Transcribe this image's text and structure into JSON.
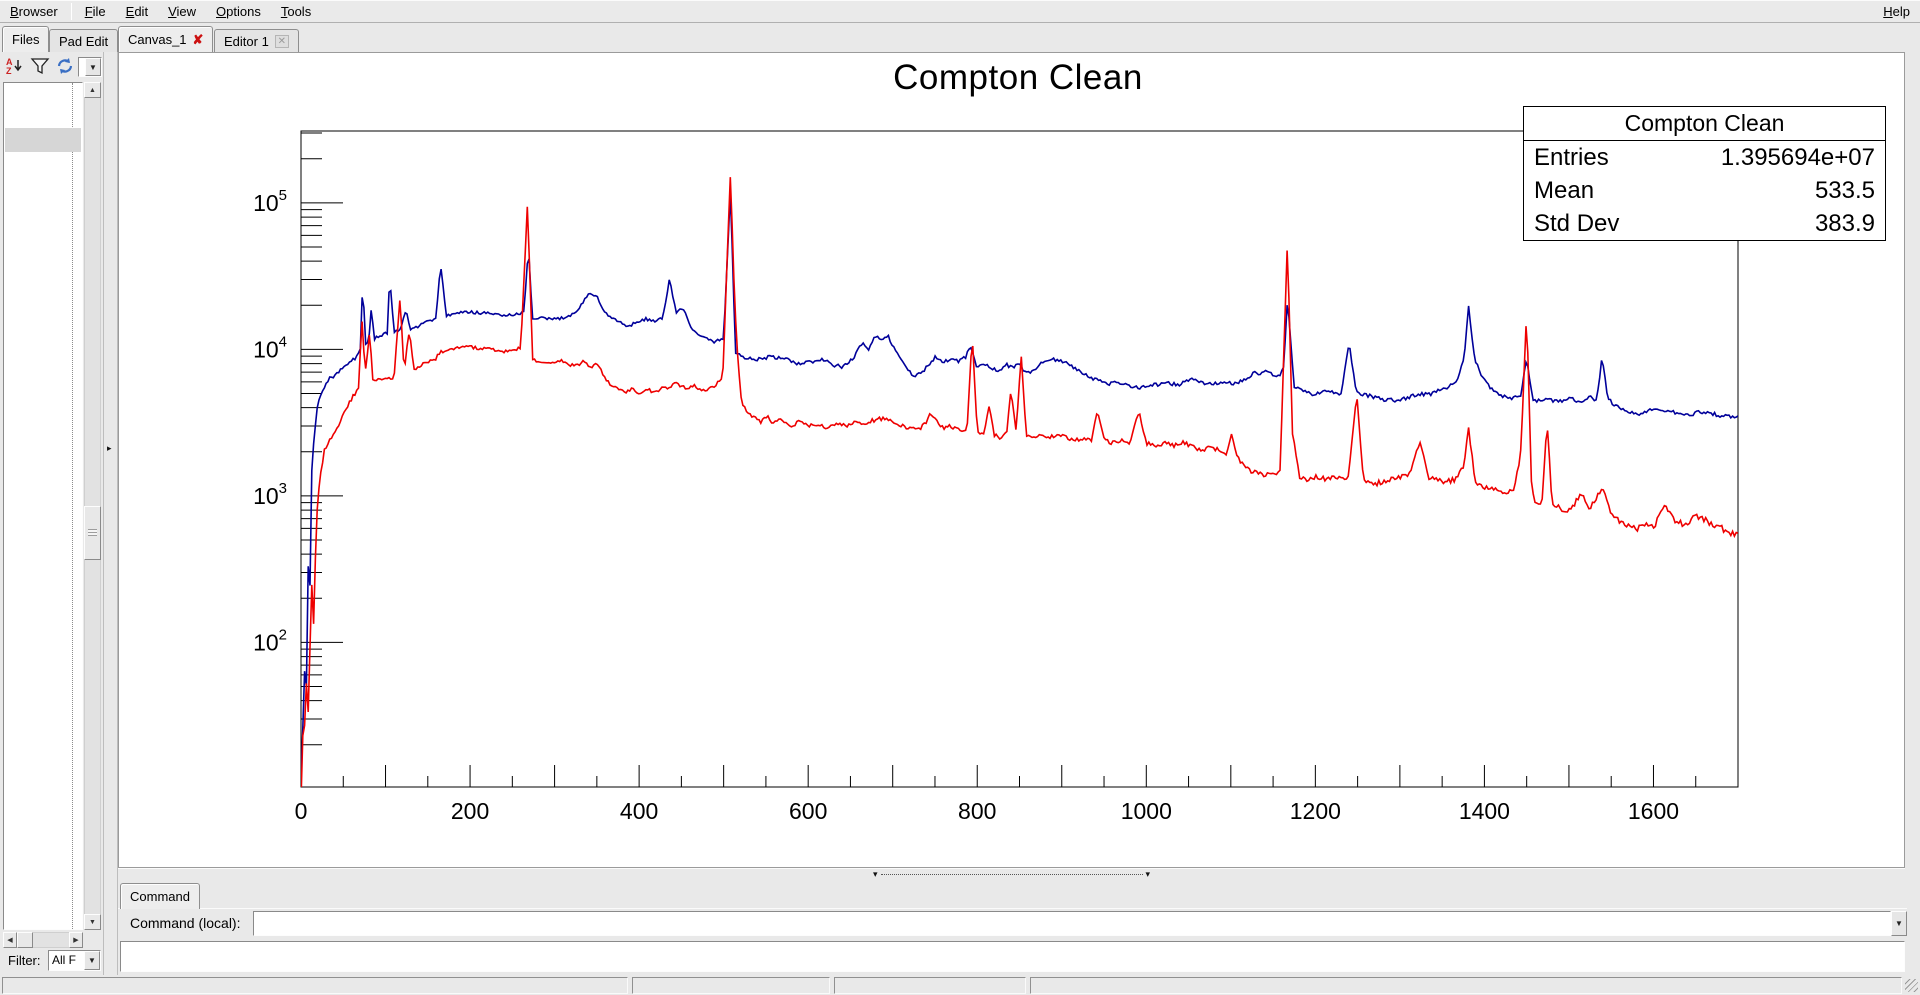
{
  "menu_bar": {
    "left_items": [
      "Browser",
      "File",
      "Edit",
      "View",
      "Options",
      "Tools"
    ],
    "right_items": [
      "Help"
    ]
  },
  "left_panel": {
    "tabs": [
      {
        "label": "Files"
      },
      {
        "label": "Pad Edit"
      }
    ],
    "toolbar_icons": [
      "sort-az-icon",
      "filter-icon",
      "refresh-icon"
    ],
    "toolbar_combo_value": "",
    "filter": {
      "label": "Filter:",
      "value": "All F"
    }
  },
  "main_area": {
    "tabs": [
      {
        "label": "Canvas_1"
      },
      {
        "label": "Editor 1"
      }
    ]
  },
  "command_panel": {
    "tab_label": "Command",
    "prompt_label": "Command (local):",
    "input_value": ""
  },
  "status_bar": {
    "cells": [
      "",
      "",
      "",
      ""
    ]
  },
  "chart_data": {
    "type": "line",
    "title": "Compton Clean",
    "xlabel": "",
    "ylabel": "",
    "xlim": [
      0,
      1700
    ],
    "ylim": [
      10,
      310000
    ],
    "yscale": "log",
    "grid": false,
    "x_tick_major_step": 100,
    "x_tick_minor_step": 50,
    "x_tick_labels": [
      0,
      200,
      400,
      600,
      800,
      1000,
      1200,
      1400,
      1600
    ],
    "y_tick_exponents": [
      2,
      3,
      4,
      5
    ],
    "stats_box": {
      "title": "Compton Clean",
      "rows": [
        {
          "label": "Entries",
          "value": "1.395694e+07"
        },
        {
          "label": "Mean",
          "value": "533.5"
        },
        {
          "label": "Std Dev",
          "value": "383.9"
        }
      ]
    },
    "series": [
      {
        "name": "spectrum-blue",
        "color": "#00009a",
        "points_xy": [
          1,
          12,
          4,
          80,
          6,
          30,
          8,
          400,
          10,
          150,
          13,
          1800,
          16,
          2600,
          20,
          4500,
          27,
          5500,
          34,
          6300,
          42,
          6800,
          52,
          7600,
          62,
          8500,
          70,
          9500,
          73,
          30000,
          76,
          11000,
          80,
          11500,
          83,
          19000,
          87,
          11800,
          95,
          12500,
          102,
          13000,
          105,
          31000,
          110,
          13000,
          118,
          13800,
          124,
          18500,
          130,
          13500,
          140,
          14500,
          150,
          15500,
          160,
          16500,
          165,
          39000,
          172,
          16800,
          183,
          17500,
          196,
          18000,
          210,
          17800,
          224,
          17500,
          238,
          17200,
          250,
          17000,
          258,
          17400,
          264,
          18000,
          269,
          50000,
          274,
          16000,
          283,
          16300,
          297,
          16000,
          312,
          16500,
          326,
          18000,
          340,
          24000,
          350,
          23000,
          360,
          17500,
          372,
          16000,
          384,
          14500,
          396,
          15000,
          408,
          16200,
          420,
          15500,
          428,
          16300,
          436,
          30000,
          444,
          17500,
          452,
          19500,
          460,
          14500,
          469,
          12500,
          480,
          11800,
          490,
          11300,
          500,
          11800,
          508,
          120000,
          514,
          9500,
          524,
          8800,
          538,
          8500,
          556,
          8900,
          572,
          8600,
          588,
          8000,
          603,
          8200,
          617,
          8500,
          630,
          7800,
          641,
          7600,
          652,
          8500,
          664,
          11000,
          671,
          10000,
          679,
          12200,
          687,
          11800,
          694,
          12500,
          703,
          9800,
          714,
          7700,
          725,
          6500,
          738,
          7300,
          750,
          8800,
          759,
          8200,
          768,
          8600,
          777,
          8300,
          786,
          8800,
          792,
          10800,
          799,
          7700,
          808,
          7900,
          817,
          7400,
          826,
          7100,
          834,
          7900,
          842,
          7500,
          848,
          8000,
          855,
          7200,
          863,
          7000,
          876,
          8000,
          888,
          8600,
          899,
          8400,
          911,
          7700,
          924,
          7000,
          938,
          6300,
          952,
          5800,
          966,
          5900,
          979,
          5700,
          993,
          5500,
          1008,
          5700,
          1023,
          5900,
          1038,
          5700,
          1052,
          6300,
          1066,
          5900,
          1080,
          5800,
          1093,
          6000,
          1105,
          5800,
          1118,
          6200,
          1128,
          7000,
          1136,
          6800,
          1145,
          7200,
          1152,
          6600,
          1159,
          6600,
          1163,
          8000,
          1167,
          22000,
          1175,
          5600,
          1186,
          5200,
          1198,
          4900,
          1210,
          5100,
          1221,
          5100,
          1231,
          5000,
          1240,
          11300,
          1248,
          5100,
          1259,
          4900,
          1271,
          4700,
          1284,
          4500,
          1297,
          4500,
          1311,
          4700,
          1323,
          5000,
          1335,
          4900,
          1347,
          5300,
          1358,
          5600,
          1368,
          6300,
          1376,
          8500,
          1381,
          20000,
          1388,
          8800,
          1398,
          6300,
          1409,
          5300,
          1421,
          4800,
          1433,
          4600,
          1443,
          4800,
          1450,
          8700,
          1457,
          4600,
          1466,
          4400,
          1473,
          4700,
          1481,
          4500,
          1491,
          4400,
          1502,
          4600,
          1513,
          4400,
          1526,
          4700,
          1533,
          4500,
          1539,
          8800,
          1546,
          4700,
          1553,
          4200,
          1563,
          3900,
          1574,
          3700,
          1583,
          3600,
          1594,
          3800,
          1606,
          3900,
          1614,
          3850,
          1624,
          3700,
          1635,
          3550,
          1647,
          3650,
          1658,
          3750,
          1670,
          3650,
          1682,
          3500,
          1695,
          3450
        ]
      },
      {
        "name": "spectrum-red",
        "color": "#ee0000",
        "points_xy": [
          1,
          10,
          3,
          50,
          5,
          15,
          7,
          90,
          9,
          25,
          12,
          300,
          15,
          120,
          18,
          700,
          22,
          1300,
          28,
          2100,
          35,
          2500,
          43,
          2900,
          52,
          3800,
          61,
          4700,
          68,
          5500,
          72,
          16000,
          76,
          6800,
          81,
          13000,
          85,
          6300,
          93,
          6200,
          101,
          6400,
          110,
          6300,
          117,
          22500,
          122,
          7200,
          128,
          13500,
          134,
          7200,
          142,
          7700,
          150,
          8300,
          158,
          8400,
          164,
          9500,
          171,
          9800,
          180,
          10000,
          190,
          10300,
          200,
          10400,
          212,
          10200,
          226,
          10000,
          240,
          9700,
          251,
          9900,
          260,
          10200,
          268,
          100000,
          274,
          8400,
          284,
          8300,
          296,
          8100,
          308,
          8300,
          318,
          7900,
          328,
          7700,
          334,
          8300,
          342,
          7500,
          351,
          7900,
          359,
          6400,
          367,
          5600,
          375,
          5400,
          384,
          5100,
          394,
          5400,
          402,
          4900,
          411,
          5300,
          419,
          5100,
          427,
          5500,
          435,
          5300,
          443,
          6100,
          450,
          5600,
          457,
          5300,
          465,
          5700,
          472,
          5400,
          480,
          5300,
          489,
          5600,
          499,
          6600,
          508,
          160000,
          513,
          21000,
          517,
          8200,
          521,
          4300,
          528,
          3700,
          536,
          3400,
          545,
          3200,
          552,
          3500,
          559,
          3100,
          566,
          3400,
          573,
          3100,
          581,
          3000,
          590,
          3200,
          600,
          3000,
          611,
          3100,
          622,
          2900,
          633,
          3100,
          644,
          3000,
          655,
          3200,
          667,
          3100,
          679,
          3300,
          690,
          3400,
          700,
          3200,
          710,
          3000,
          720,
          2900,
          730,
          2800,
          738,
          3100,
          745,
          3700,
          752,
          3200,
          761,
          2900,
          769,
          3000,
          778,
          2800,
          788,
          2900,
          794,
          12500,
          800,
          2800,
          808,
          2600,
          814,
          4100,
          820,
          2600,
          828,
          2500,
          835,
          2700,
          840,
          5300,
          846,
          2800,
          852,
          9200,
          858,
          2600,
          866,
          2500,
          876,
          2600,
          886,
          2500,
          896,
          2600,
          906,
          2500,
          916,
          2400,
          926,
          2500,
          935,
          2400,
          942,
          3900,
          950,
          2400,
          960,
          2300,
          970,
          2400,
          981,
          2300,
          991,
          3800,
          1000,
          2300,
          1011,
          2200,
          1021,
          2300,
          1033,
          2200,
          1044,
          2300,
          1055,
          2150,
          1066,
          2050,
          1077,
          2150,
          1088,
          2000,
          1095,
          1950,
          1101,
          2700,
          1108,
          1850,
          1118,
          1550,
          1128,
          1450,
          1139,
          1400,
          1149,
          1450,
          1158,
          1400,
          1167,
          54000,
          1173,
          2700,
          1181,
          1350,
          1191,
          1300,
          1201,
          1350,
          1211,
          1300,
          1221,
          1350,
          1229,
          1300,
          1239,
          1350,
          1249,
          4900,
          1257,
          1250,
          1268,
          1200,
          1280,
          1250,
          1291,
          1300,
          1302,
          1350,
          1312,
          1400,
          1324,
          2400,
          1333,
          1350,
          1342,
          1300,
          1353,
          1250,
          1366,
          1300,
          1376,
          1600,
          1381,
          3000,
          1389,
          1250,
          1400,
          1150,
          1412,
          1100,
          1424,
          1050,
          1436,
          1150,
          1443,
          2000,
          1450,
          18000,
          1456,
          1100,
          1461,
          850,
          1468,
          900,
          1474,
          3300,
          1480,
          900,
          1490,
          830,
          1501,
          780,
          1514,
          1050,
          1524,
          830,
          1540,
          1150,
          1549,
          780,
          1559,
          680,
          1569,
          630,
          1580,
          600,
          1591,
          650,
          1601,
          630,
          1614,
          860,
          1625,
          680,
          1636,
          630,
          1649,
          730,
          1661,
          680,
          1673,
          630,
          1686,
          580,
          1697,
          540
        ]
      }
    ]
  }
}
